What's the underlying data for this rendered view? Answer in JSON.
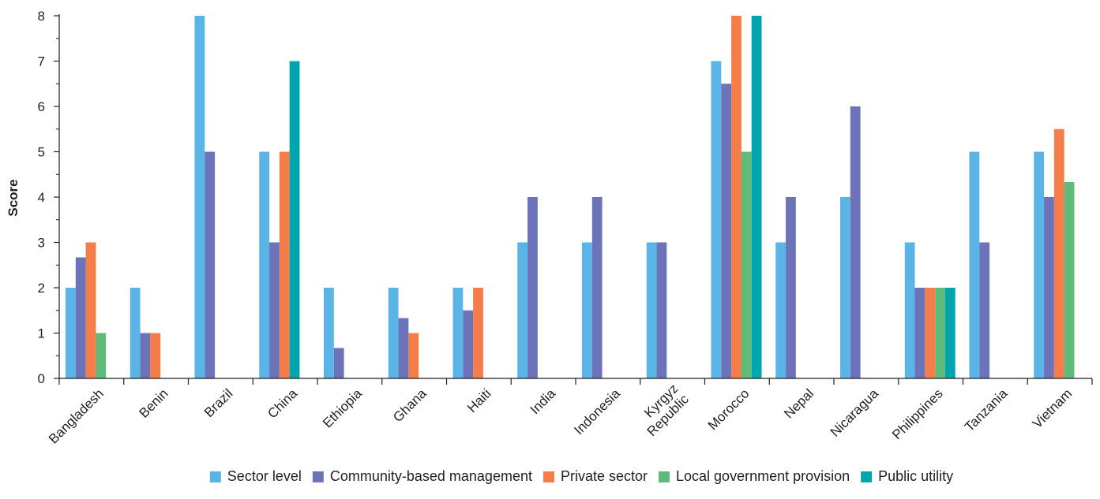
{
  "chart_data": {
    "type": "bar",
    "title": "",
    "xlabel": "",
    "ylabel": "Score",
    "ylim": [
      0,
      8
    ],
    "yticks": [
      0,
      1,
      2,
      3,
      4,
      5,
      6,
      7,
      8
    ],
    "grid": false,
    "legend_position": "bottom",
    "categories": [
      [
        "Bangladesh"
      ],
      [
        "Benin"
      ],
      [
        "Brazil"
      ],
      [
        "China"
      ],
      [
        "Ethiopia"
      ],
      [
        "Ghana"
      ],
      [
        "Haiti"
      ],
      [
        "India"
      ],
      [
        "Indonesia"
      ],
      [
        "Kyrgyz",
        "Republic"
      ],
      [
        "Morocco"
      ],
      [
        "Nepal"
      ],
      [
        "Nicaragua"
      ],
      [
        "Philippines"
      ],
      [
        "Tanzania"
      ],
      [
        "Vietnam"
      ]
    ],
    "series": [
      {
        "name": "Sector level",
        "color": "#5ab4e5",
        "values": [
          2,
          2,
          8,
          5,
          2,
          2,
          2,
          3,
          3,
          3,
          7,
          3,
          4,
          3,
          5,
          5
        ]
      },
      {
        "name": "Community-based management",
        "color": "#6d73b9",
        "values": [
          2.67,
          1,
          5,
          3,
          0.67,
          1.33,
          1.5,
          4,
          4,
          3,
          6.5,
          4,
          6,
          2,
          3,
          4
        ]
      },
      {
        "name": "Private sector",
        "color": "#f47d4a",
        "values": [
          3,
          1,
          null,
          5,
          null,
          1,
          2,
          null,
          null,
          null,
          8,
          null,
          null,
          2,
          null,
          5.5
        ]
      },
      {
        "name": "Local government provision",
        "color": "#5fbb7a",
        "values": [
          1,
          null,
          null,
          null,
          null,
          null,
          null,
          null,
          null,
          null,
          5,
          null,
          null,
          2,
          null,
          4.33
        ]
      },
      {
        "name": "Public utility",
        "color": "#00a6ae",
        "values": [
          null,
          null,
          null,
          7,
          null,
          null,
          null,
          null,
          null,
          null,
          8,
          null,
          null,
          2,
          null,
          null
        ]
      }
    ]
  }
}
